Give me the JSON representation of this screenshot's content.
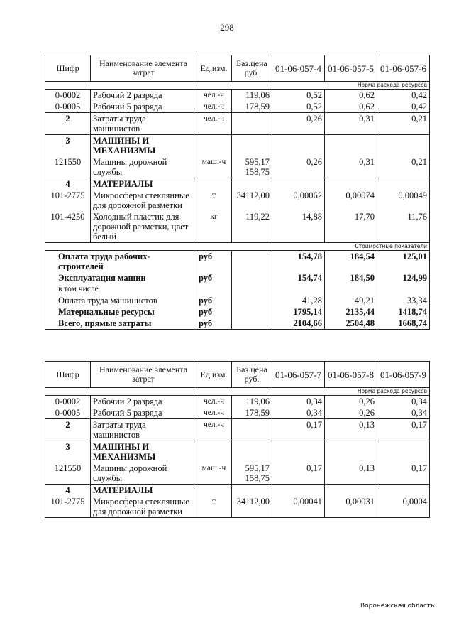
{
  "page_number": "298",
  "footer": "Воронежская область",
  "tables": [
    {
      "headers": [
        "Шифр",
        "Наименование элемента затрат",
        "Ед.изм.",
        "Баз.цена руб.",
        "01-06-057-4",
        "01-06-057-5",
        "01-06-057-6"
      ],
      "norm_label": "Норма расхода ресурсов",
      "sections": [
        [
          {
            "code": "0-0002",
            "name": "Рабочий 2 разряда",
            "unit": "чел.-ч",
            "price": "119,06",
            "values": [
              "0,52",
              "0,62",
              "0,42"
            ]
          },
          {
            "code": "0-0005",
            "name": "Рабочий 5 разряда",
            "unit": "чел.-ч",
            "price": "178,59",
            "values": [
              "0,52",
              "0,62",
              "0,42"
            ]
          }
        ],
        [
          {
            "code": "2",
            "name": "Затраты труда машинистов",
            "unit": "чел.-ч",
            "price": "",
            "values": [
              "0,26",
              "0,31",
              "0,21"
            ],
            "bold_code": true
          }
        ],
        [
          {
            "code": "3",
            "name": "МАШИНЫ И МЕХАНИЗМЫ",
            "unit": "",
            "price": "",
            "values": [
              "",
              "",
              ""
            ],
            "bold": true
          },
          {
            "code": "121550",
            "name": "Машины дорожной службы",
            "unit": "маш.-ч",
            "price": "595,17",
            "price2": "158,75",
            "values": [
              "0,26",
              "0,31",
              "0,21"
            ]
          }
        ],
        [
          {
            "code": "4",
            "name": "МАТЕРИАЛЫ",
            "unit": "",
            "price": "",
            "values": [
              "",
              "",
              ""
            ],
            "bold": true
          },
          {
            "code": "101-2775",
            "name": "Микросферы стеклянные для дорожной разметки",
            "unit": "т",
            "price": "34112,00",
            "values": [
              "0,00062",
              "0,00074",
              "0,00049"
            ]
          },
          {
            "code": "101-4250",
            "name": "Холодный пластик для дорожной разметки, цвет белый",
            "unit": "кг",
            "price": "119,22",
            "values": [
              "14,88",
              "17,70",
              "11,76"
            ]
          }
        ]
      ],
      "cost_label": "Стоимостные показатели",
      "summary": [
        {
          "name": "Оплата труда рабочих-строителей",
          "unit": "руб",
          "values": [
            "154,78",
            "184,54",
            "125,01"
          ],
          "bold": true
        },
        {
          "name": "Эксплуатация машин",
          "unit": "руб",
          "values": [
            "154,74",
            "184,50",
            "124,99"
          ],
          "bold": true
        },
        {
          "name": "в том числе",
          "unit": "",
          "values": [
            "",
            "",
            ""
          ],
          "small": true
        },
        {
          "name": "Оплата труда машинистов",
          "unit": "руб",
          "values": [
            "41,28",
            "49,21",
            "33,34"
          ]
        },
        {
          "name": "Материальные ресурсы",
          "unit": "руб",
          "values": [
            "1795,14",
            "2135,44",
            "1418,74"
          ],
          "bold": true
        },
        {
          "name": "Всего, прямые затраты",
          "unit": "руб",
          "values": [
            "2104,66",
            "2504,48",
            "1668,74"
          ],
          "bold": true
        }
      ]
    },
    {
      "headers": [
        "Шифр",
        "Наименование элемента затрат",
        "Ед.изм.",
        "Баз.цена руб.",
        "01-06-057-7",
        "01-06-057-8",
        "01-06-057-9"
      ],
      "norm_label": "Норма расхода ресурсов",
      "sections": [
        [
          {
            "code": "0-0002",
            "name": "Рабочий 2 разряда",
            "unit": "чел.-ч",
            "price": "119,06",
            "values": [
              "0,34",
              "0,26",
              "0,34"
            ]
          },
          {
            "code": "0-0005",
            "name": "Рабочий 5 разряда",
            "unit": "чел.-ч",
            "price": "178,59",
            "values": [
              "0,34",
              "0,26",
              "0,34"
            ]
          }
        ],
        [
          {
            "code": "2",
            "name": "Затраты труда машинистов",
            "unit": "чел.-ч",
            "price": "",
            "values": [
              "0,17",
              "0,13",
              "0,17"
            ],
            "bold_code": true
          }
        ],
        [
          {
            "code": "3",
            "name": "МАШИНЫ И МЕХАНИЗМЫ",
            "unit": "",
            "price": "",
            "values": [
              "",
              "",
              ""
            ],
            "bold": true
          },
          {
            "code": "121550",
            "name": "Машины дорожной службы",
            "unit": "маш.-ч",
            "price": "595,17",
            "price2": "158,75",
            "values": [
              "0,17",
              "0,13",
              "0,17"
            ]
          }
        ],
        [
          {
            "code": "4",
            "name": "МАТЕРИАЛЫ",
            "unit": "",
            "price": "",
            "values": [
              "",
              "",
              ""
            ],
            "bold": true
          },
          {
            "code": "101-2775",
            "name": "Микросферы стеклянные для дорожной разметки",
            "unit": "т",
            "price": "34112,00",
            "values": [
              "0,00041",
              "0,00031",
              "0,0004"
            ]
          }
        ]
      ]
    }
  ]
}
